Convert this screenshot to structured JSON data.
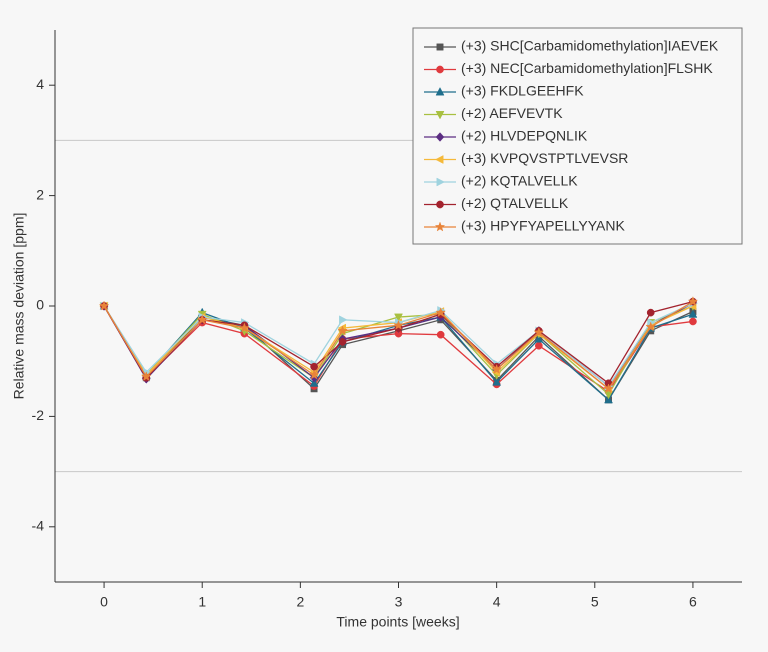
{
  "chart_data": {
    "type": "line",
    "xlabel": "Time points [weeks]",
    "ylabel": "Relative mass deviation [ppm]",
    "x": [
      0,
      0.43,
      1,
      1.43,
      2.14,
      2.43,
      3,
      3.43,
      4,
      4.43,
      5.14,
      5.57,
      6
    ],
    "xlim": [
      -0.5,
      6.5
    ],
    "xticks": [
      0,
      1,
      2,
      3,
      4,
      5,
      6
    ],
    "ylim": [
      -5,
      5
    ],
    "yticks": [
      -4,
      -2,
      0,
      2,
      4
    ],
    "hlines": [
      3,
      -3
    ],
    "legend": "upper right",
    "series": [
      {
        "name": "(+3) SHC[Carbamidomethylation]IAEVEK",
        "color": "#555555",
        "marker": "square",
        "values": [
          0,
          -1.3,
          -0.2,
          -0.35,
          -1.5,
          -0.7,
          -0.45,
          -0.25,
          -1.35,
          -0.55,
          -1.7,
          -0.45,
          -0.1
        ]
      },
      {
        "name": "(+3) NEC[Carbamidomethylation]FLSHK",
        "color": "#e03a3e",
        "marker": "circle",
        "values": [
          0,
          -1.3,
          -0.3,
          -0.5,
          -1.45,
          -0.6,
          -0.5,
          -0.52,
          -1.42,
          -0.72,
          -1.55,
          -0.38,
          -0.28
        ]
      },
      {
        "name": "(+3) FKDLGEEHFK",
        "color": "#1f6e8c",
        "marker": "triangle-up",
        "values": [
          0,
          -1.25,
          -0.12,
          -0.4,
          -1.4,
          -0.65,
          -0.35,
          -0.2,
          -1.38,
          -0.6,
          -1.7,
          -0.4,
          -0.15
        ]
      },
      {
        "name": "(+2) AEFVEVTK",
        "color": "#a8c040",
        "marker": "triangle-down",
        "values": [
          0,
          -1.25,
          -0.15,
          -0.45,
          -1.3,
          -0.5,
          -0.2,
          -0.15,
          -1.25,
          -0.5,
          -1.6,
          -0.3,
          0
        ]
      },
      {
        "name": "(+2) HLVDEPQNLIK",
        "color": "#5b2d82",
        "marker": "diamond",
        "values": [
          0,
          -1.32,
          -0.25,
          -0.35,
          -1.3,
          -0.6,
          -0.4,
          -0.2,
          -1.15,
          -0.45,
          -1.45,
          -0.35,
          0.05
        ]
      },
      {
        "name": "(+3) KVPQVSTPTLVEVSR",
        "color": "#f5b93a",
        "marker": "triangle-left",
        "values": [
          0,
          -1.25,
          -0.2,
          -0.4,
          -1.2,
          -0.4,
          -0.3,
          -0.1,
          -1.2,
          -0.5,
          -1.5,
          -0.35,
          0
        ]
      },
      {
        "name": "(+2) KQTALVELLK",
        "color": "#9fd3df",
        "marker": "triangle-right",
        "values": [
          0,
          -1.2,
          -0.2,
          -0.3,
          -1.05,
          -0.25,
          -0.3,
          -0.08,
          -1.05,
          -0.45,
          -1.45,
          -0.3,
          0.05
        ]
      },
      {
        "name": "(+2) QTALVELLK",
        "color": "#a3232e",
        "marker": "circle",
        "values": [
          0,
          -1.3,
          -0.25,
          -0.35,
          -1.1,
          -0.65,
          -0.4,
          -0.15,
          -1.1,
          -0.45,
          -1.4,
          -0.12,
          0.08
        ]
      },
      {
        "name": "(+3) HPYFYAPELLYYANK",
        "color": "#e8843a",
        "marker": "star",
        "values": [
          0,
          -1.28,
          -0.25,
          -0.4,
          -1.25,
          -0.45,
          -0.35,
          -0.12,
          -1.15,
          -0.48,
          -1.5,
          -0.38,
          0.08
        ]
      }
    ]
  }
}
